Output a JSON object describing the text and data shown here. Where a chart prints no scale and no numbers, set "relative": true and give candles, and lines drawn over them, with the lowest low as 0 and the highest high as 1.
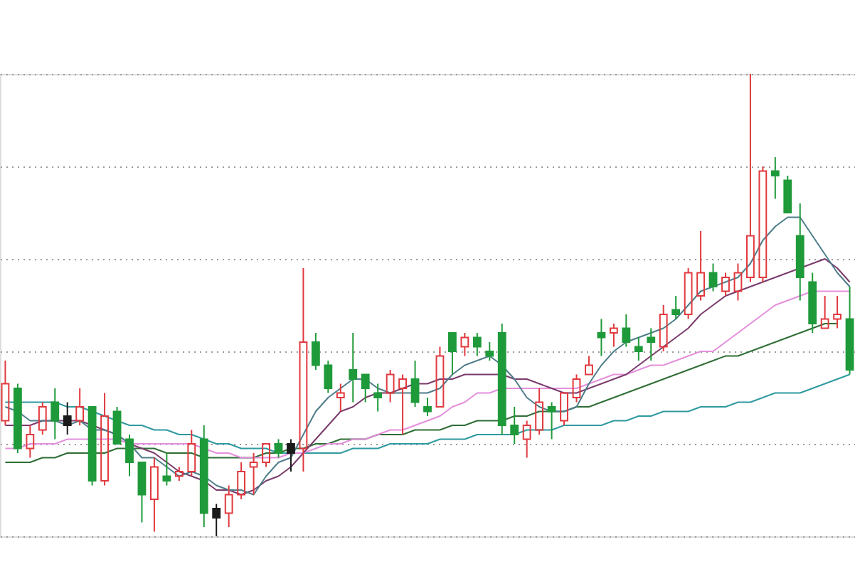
{
  "chart_data": {
    "type": "candlestick",
    "relative": true,
    "grid": "y",
    "tick_labels": false,
    "categories": [
      null,
      null,
      null,
      null,
      null,
      null,
      null,
      null,
      null,
      null,
      null,
      null,
      null,
      null,
      null,
      null,
      null,
      null,
      null,
      null,
      null,
      null,
      null,
      null,
      null,
      null,
      null,
      null,
      null,
      null,
      null,
      null,
      null,
      null,
      null,
      null,
      null,
      null,
      null,
      null,
      null,
      null,
      null,
      null,
      null,
      null,
      null,
      null,
      null,
      null,
      null,
      null,
      null,
      null,
      null,
      null,
      null,
      null,
      null,
      null,
      null,
      null,
      null,
      null,
      null,
      null,
      null,
      null,
      null
    ],
    "ohlc": [
      [
        0.25,
        0.38,
        0.24,
        0.33
      ],
      [
        0.32,
        0.33,
        0.18,
        0.19
      ],
      [
        0.19,
        0.24,
        0.17,
        0.22
      ],
      [
        0.23,
        0.29,
        0.22,
        0.28
      ],
      [
        0.29,
        0.32,
        0.21,
        0.25
      ],
      [
        0.26,
        0.29,
        0.22,
        0.24
      ],
      [
        0.25,
        0.32,
        0.24,
        0.28
      ],
      [
        0.28,
        0.28,
        0.11,
        0.12
      ],
      [
        0.12,
        0.31,
        0.11,
        0.26
      ],
      [
        0.27,
        0.28,
        0.2,
        0.2
      ],
      [
        0.21,
        0.22,
        0.13,
        0.16
      ],
      [
        0.16,
        0.16,
        0.03,
        0.09
      ],
      [
        0.08,
        0.17,
        0.01,
        0.15
      ],
      [
        0.13,
        0.18,
        0.11,
        0.12
      ],
      [
        0.13,
        0.15,
        0.12,
        0.14
      ],
      [
        0.14,
        0.23,
        0.13,
        0.2
      ],
      [
        0.21,
        0.24,
        0.02,
        0.05
      ],
      [
        0.06,
        0.07,
        0,
        0.04
      ],
      [
        0.05,
        0.11,
        0.02,
        0.09
      ],
      [
        0.09,
        0.16,
        0.08,
        0.14
      ],
      [
        0.15,
        0.18,
        0.09,
        0.16
      ],
      [
        0.16,
        0.2,
        0.15,
        0.2
      ],
      [
        0.2,
        0.21,
        0.17,
        0.18
      ],
      [
        0.2,
        0.21,
        0.14,
        0.18
      ],
      [
        0.19,
        0.58,
        0.14,
        0.42
      ],
      [
        0.42,
        0.44,
        0.36,
        0.37
      ],
      [
        0.37,
        0.38,
        0.31,
        0.32
      ],
      [
        0.3,
        0.33,
        0.27,
        0.31
      ],
      [
        0.36,
        0.44,
        0.29,
        0.34
      ],
      [
        0.35,
        0.35,
        0.29,
        0.32
      ],
      [
        0.31,
        0.33,
        0.27,
        0.3
      ],
      [
        0.31,
        0.36,
        0.29,
        0.35
      ],
      [
        0.32,
        0.35,
        0.22,
        0.34
      ],
      [
        0.34,
        0.38,
        0.28,
        0.29
      ],
      [
        0.28,
        0.3,
        0.26,
        0.27
      ],
      [
        0.28,
        0.41,
        0.28,
        0.39
      ],
      [
        0.44,
        0.44,
        0.35,
        0.4
      ],
      [
        0.41,
        0.44,
        0.39,
        0.43
      ],
      [
        0.43,
        0.44,
        0.39,
        0.41
      ],
      [
        0.4,
        0.42,
        0.38,
        0.39
      ],
      [
        0.44,
        0.46,
        0.22,
        0.24
      ],
      [
        0.24,
        0.28,
        0.2,
        0.22
      ],
      [
        0.21,
        0.25,
        0.17,
        0.24
      ],
      [
        0.23,
        0.32,
        0.22,
        0.29
      ],
      [
        0.28,
        0.29,
        0.21,
        0.27
      ],
      [
        0.25,
        0.31,
        0.24,
        0.31
      ],
      [
        0.3,
        0.35,
        0.29,
        0.34
      ],
      [
        0.35,
        0.39,
        0.35,
        0.37
      ],
      [
        0.44,
        0.47,
        0.39,
        0.43
      ],
      [
        0.44,
        0.46,
        0.41,
        0.45
      ],
      [
        0.45,
        0.48,
        0.41,
        0.42
      ],
      [
        0.41,
        0.43,
        0.38,
        0.4
      ],
      [
        0.43,
        0.45,
        0.38,
        0.42
      ],
      [
        0.41,
        0.5,
        0.4,
        0.48
      ],
      [
        0.49,
        0.52,
        0.47,
        0.48
      ],
      [
        0.48,
        0.58,
        0.47,
        0.57
      ],
      [
        0.52,
        0.66,
        0.51,
        0.57
      ],
      [
        0.57,
        0.59,
        0.53,
        0.54
      ],
      [
        0.53,
        0.57,
        0.52,
        0.56
      ],
      [
        0.53,
        0.59,
        0.51,
        0.57
      ],
      [
        0.56,
        1,
        0.55,
        0.65
      ],
      [
        0.56,
        0.8,
        0.55,
        0.79
      ],
      [
        0.79,
        0.82,
        0.73,
        0.78
      ],
      [
        0.77,
        0.78,
        0.7,
        0.7
      ],
      [
        0.65,
        0.72,
        0.51,
        0.56
      ],
      [
        0.55,
        0.57,
        0.44,
        0.46
      ],
      [
        0.45,
        0.52,
        0.45,
        0.47
      ],
      [
        0.47,
        0.52,
        0.45,
        0.48
      ],
      [
        0.47,
        0.54,
        0.35,
        0.36
      ]
    ],
    "colors": [
      "#e0393e",
      "#1f9a3a",
      "#e0393e",
      "#e0393e",
      "#1f9a3a",
      "#1a1a1a",
      "#e0393e",
      "#1f9a3a",
      "#e0393e",
      "#1f9a3a",
      "#1f9a3a",
      "#1f9a3a",
      "#e0393e",
      "#1f9a3a",
      "#e0393e",
      "#e0393e",
      "#1f9a3a",
      "#1a1a1a",
      "#e0393e",
      "#e0393e",
      "#e0393e",
      "#e0393e",
      "#1f9a3a",
      "#1a1a1a",
      "#e0393e",
      "#1f9a3a",
      "#1f9a3a",
      "#e0393e",
      "#1f9a3a",
      "#1f9a3a",
      "#1f9a3a",
      "#e0393e",
      "#e0393e",
      "#1f9a3a",
      "#1f9a3a",
      "#e0393e",
      "#1f9a3a",
      "#e0393e",
      "#1f9a3a",
      "#1f9a3a",
      "#1f9a3a",
      "#1f9a3a",
      "#e0393e",
      "#e0393e",
      "#1f9a3a",
      "#e0393e",
      "#e0393e",
      "#e0393e",
      "#1f9a3a",
      "#e0393e",
      "#1f9a3a",
      "#1f9a3a",
      "#1f9a3a",
      "#e0393e",
      "#1f9a3a",
      "#e0393e",
      "#e0393e",
      "#1f9a3a",
      "#e0393e",
      "#e0393e",
      "#e0393e",
      "#e0393e",
      "#1f9a3a",
      "#1f9a3a",
      "#1f9a3a",
      "#1f9a3a",
      "#e0393e",
      "#e0393e",
      "#1f9a3a"
    ],
    "series": [
      {
        "type": "line",
        "color": "#2f9aa0",
        "values": [
          0.29,
          0.29,
          0.29,
          0.29,
          0.29,
          0.28,
          0.28,
          0.27,
          0.26,
          0.25,
          0.24,
          0.24,
          0.23,
          0.23,
          0.22,
          0.22,
          0.21,
          0.2,
          0.2,
          0.19,
          0.19,
          0.19,
          0.18,
          0.18,
          0.18,
          0.18,
          0.18,
          0.18,
          0.19,
          0.19,
          0.19,
          0.2,
          0.2,
          0.2,
          0.2,
          0.21,
          0.21,
          0.21,
          0.22,
          0.22,
          0.22,
          0.22,
          0.23,
          0.23,
          0.23,
          0.24,
          0.24,
          0.24,
          0.24,
          0.25,
          0.25,
          0.26,
          0.26,
          0.27,
          0.27,
          0.27,
          0.28,
          0.28,
          0.28,
          0.29,
          0.29,
          0.3,
          0.31,
          0.31,
          0.31,
          0.32,
          0.33,
          0.34,
          0.35
        ]
      },
      {
        "type": "line",
        "color": "#2f6e35",
        "values": [
          0.16,
          0.16,
          0.16,
          0.17,
          0.17,
          0.18,
          0.18,
          0.18,
          0.18,
          0.19,
          0.19,
          0.19,
          0.19,
          0.18,
          0.18,
          0.18,
          0.17,
          0.17,
          0.17,
          0.17,
          0.17,
          0.18,
          0.18,
          0.19,
          0.19,
          0.2,
          0.2,
          0.21,
          0.21,
          0.21,
          0.22,
          0.22,
          0.22,
          0.23,
          0.23,
          0.23,
          0.24,
          0.24,
          0.25,
          0.25,
          0.25,
          0.26,
          0.26,
          0.27,
          0.27,
          0.27,
          0.28,
          0.28,
          0.29,
          0.3,
          0.31,
          0.32,
          0.33,
          0.34,
          0.35,
          0.36,
          0.37,
          0.38,
          0.39,
          0.39,
          0.4,
          0.41,
          0.42,
          0.43,
          0.44,
          0.45,
          0.46,
          0.46,
          null
        ]
      },
      {
        "type": "line",
        "color": "#e48fdc",
        "values": [
          0.19,
          0.19,
          0.2,
          0.2,
          0.2,
          0.21,
          0.21,
          0.21,
          0.21,
          0.21,
          0.2,
          0.2,
          0.2,
          0.2,
          0.2,
          0.2,
          0.19,
          0.18,
          0.18,
          0.17,
          0.17,
          0.17,
          0.17,
          0.18,
          0.18,
          0.19,
          0.2,
          0.2,
          0.21,
          0.21,
          0.22,
          0.23,
          0.23,
          0.24,
          0.25,
          0.26,
          0.28,
          0.29,
          0.31,
          0.31,
          0.32,
          0.32,
          0.32,
          0.32,
          0.32,
          0.32,
          0.32,
          0.33,
          0.34,
          0.35,
          0.35,
          0.36,
          0.37,
          0.37,
          0.38,
          0.39,
          0.4,
          0.4,
          0.42,
          0.44,
          0.46,
          0.48,
          0.5,
          0.51,
          0.52,
          0.53,
          0.53,
          0.53,
          0.53
        ]
      },
      {
        "type": "line",
        "color": "#7a3b6c",
        "values": [
          0.24,
          0.24,
          0.24,
          0.25,
          0.25,
          0.25,
          0.25,
          0.24,
          0.23,
          0.22,
          0.2,
          0.19,
          0.18,
          0.16,
          0.14,
          0.13,
          0.12,
          0.1,
          0.1,
          0.09,
          0.1,
          0.12,
          0.13,
          0.15,
          0.18,
          0.21,
          0.24,
          0.27,
          0.28,
          0.3,
          0.31,
          0.31,
          0.32,
          0.33,
          0.33,
          0.34,
          0.34,
          0.35,
          0.35,
          0.35,
          0.35,
          0.34,
          0.34,
          0.33,
          0.32,
          0.31,
          0.31,
          0.32,
          0.33,
          0.34,
          0.35,
          0.37,
          0.39,
          0.41,
          0.43,
          0.45,
          0.48,
          0.5,
          0.52,
          0.53,
          0.54,
          0.55,
          0.56,
          0.57,
          0.58,
          0.59,
          0.6,
          0.58,
          0.55
        ]
      },
      {
        "type": "line",
        "color": "#4e7d8a",
        "values": [
          0.28,
          0.27,
          0.25,
          0.25,
          0.25,
          0.24,
          0.25,
          0.23,
          0.23,
          0.22,
          0.2,
          0.17,
          0.17,
          0.15,
          0.13,
          0.14,
          0.13,
          0.11,
          0.1,
          0.1,
          0.09,
          0.13,
          0.16,
          0.17,
          0.22,
          0.27,
          0.3,
          0.32,
          0.34,
          0.34,
          0.32,
          0.31,
          0.31,
          0.31,
          0.31,
          0.32,
          0.35,
          0.37,
          0.38,
          0.39,
          0.37,
          0.34,
          0.3,
          0.28,
          0.27,
          0.27,
          0.28,
          0.33,
          0.37,
          0.4,
          0.42,
          0.43,
          0.44,
          0.45,
          0.47,
          0.5,
          0.53,
          0.54,
          0.55,
          0.56,
          0.59,
          0.64,
          0.67,
          0.69,
          0.69,
          0.65,
          0.61,
          0.57,
          0.54
        ]
      }
    ]
  }
}
